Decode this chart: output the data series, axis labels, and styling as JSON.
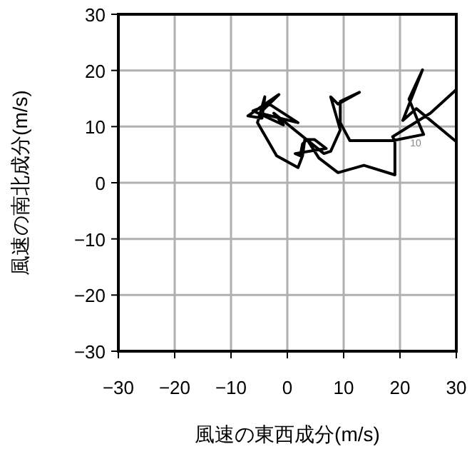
{
  "chart_data": {
    "type": "line",
    "xlabel": "風速の東西成分(m/s)",
    "ylabel": "風速の南北成分(m/s)",
    "x": [
      30,
      25.4,
      18.7,
      19.1,
      19.1,
      13.6,
      9.0,
      5.6,
      3.5,
      2.7,
      2.3,
      1.4,
      6.9,
      4.8,
      3.1,
      2.7,
      1.9,
      -1.9,
      -5.3,
      -4.0,
      -4.5,
      -7.0,
      -1.5,
      -4.9,
      1.9,
      -3.2,
      -6.1,
      -0.7,
      -2.4,
      6.5,
      7.7,
      9.4,
      7.7,
      9.0,
      12.8,
      9.4,
      9.4,
      11.1,
      18.7,
      24.2,
      23.3,
      21.6,
      24.0,
      20.5,
      22.9,
      30.0
    ],
    "values": [
      16.6,
      12.4,
      8.2,
      7.4,
      1.4,
      3.1,
      1.8,
      4.4,
      7.7,
      6.9,
      4.8,
      5.2,
      6.1,
      7.7,
      7.7,
      4.8,
      2.7,
      4.8,
      10.7,
      15.3,
      11.5,
      11.9,
      15.7,
      12.4,
      10.7,
      14.0,
      12.8,
      10.3,
      12.4,
      5.2,
      5.6,
      9.4,
      15.3,
      14.0,
      16.1,
      14.5,
      10.7,
      7.5,
      7.5,
      8.6,
      10.7,
      14.9,
      20.1,
      11.1,
      13.2,
      7.3
    ],
    "color": "#000000",
    "xlim": [
      -30,
      30
    ],
    "ylim": [
      -30,
      30
    ],
    "xticks": [
      {
        "value": -30,
        "label": "−30"
      },
      {
        "value": -20,
        "label": "−20"
      },
      {
        "value": -10,
        "label": "−10"
      },
      0,
      10,
      20,
      30
    ],
    "yticks": [
      {
        "value": -30,
        "label": "−30"
      },
      {
        "value": -20,
        "label": "−20"
      },
      {
        "value": -10,
        "label": "−10"
      },
      0,
      10,
      20,
      30
    ],
    "grid": true,
    "annotations": [
      {
        "text": "10",
        "x": 21.8,
        "y": 7.3
      }
    ]
  }
}
